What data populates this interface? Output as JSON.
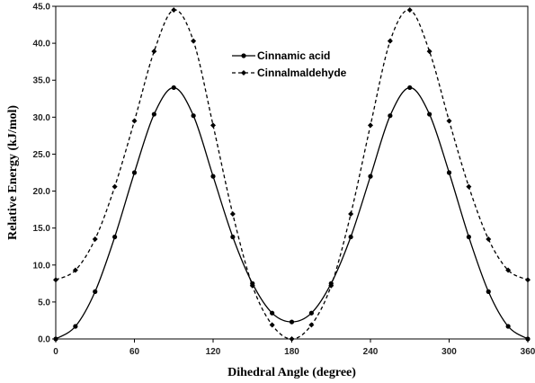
{
  "chart_data": {
    "type": "line",
    "title": "",
    "xlabel": "Dihedral Angle (degree)",
    "ylabel": "Relative Energy (kJ/mol)",
    "xlim": [
      0,
      360
    ],
    "ylim": [
      0,
      45
    ],
    "xticks": [
      0,
      60,
      120,
      180,
      240,
      300,
      360
    ],
    "yticks": [
      0.0,
      5.0,
      10.0,
      15.0,
      20.0,
      25.0,
      30.0,
      35.0,
      40.0,
      45.0
    ],
    "xtick_labels": [
      "0",
      "60",
      "120",
      "180",
      "240",
      "300",
      "360"
    ],
    "ytick_labels": [
      "0.0",
      "5.0",
      "10.0",
      "15.0",
      "20.0",
      "25.0",
      "30.0",
      "35.0",
      "40.0",
      "45.0"
    ],
    "grid": false,
    "legend_position": "top-center",
    "series": [
      {
        "name": "Cinnamic acid",
        "line_style": "solid",
        "marker": "circle",
        "color": "#000000",
        "x": [
          0,
          15,
          30,
          45,
          60,
          75,
          90,
          105,
          120,
          135,
          150,
          165,
          180,
          195,
          210,
          225,
          240,
          255,
          270,
          285,
          300,
          315,
          330,
          345,
          360
        ],
        "y": [
          0.0,
          1.7,
          6.4,
          13.8,
          22.5,
          30.4,
          34.0,
          30.2,
          22.0,
          13.8,
          7.5,
          3.5,
          2.3,
          3.5,
          7.5,
          13.8,
          22.0,
          30.2,
          34.0,
          30.4,
          22.5,
          13.8,
          6.4,
          1.7,
          0.0
        ]
      },
      {
        "name": "Cinnalmaldehyde",
        "line_style": "dashed",
        "marker": "diamond",
        "color": "#000000",
        "x": [
          0,
          15,
          30,
          45,
          60,
          75,
          90,
          105,
          120,
          135,
          150,
          165,
          180,
          195,
          210,
          225,
          240,
          255,
          270,
          285,
          300,
          315,
          330,
          345,
          360
        ],
        "y": [
          8.0,
          9.3,
          13.5,
          20.6,
          29.5,
          38.9,
          44.5,
          40.3,
          28.9,
          16.9,
          7.2,
          1.9,
          0.0,
          1.9,
          7.2,
          16.9,
          28.9,
          40.3,
          44.5,
          38.9,
          29.5,
          20.6,
          13.5,
          9.3,
          8.0
        ]
      }
    ]
  }
}
